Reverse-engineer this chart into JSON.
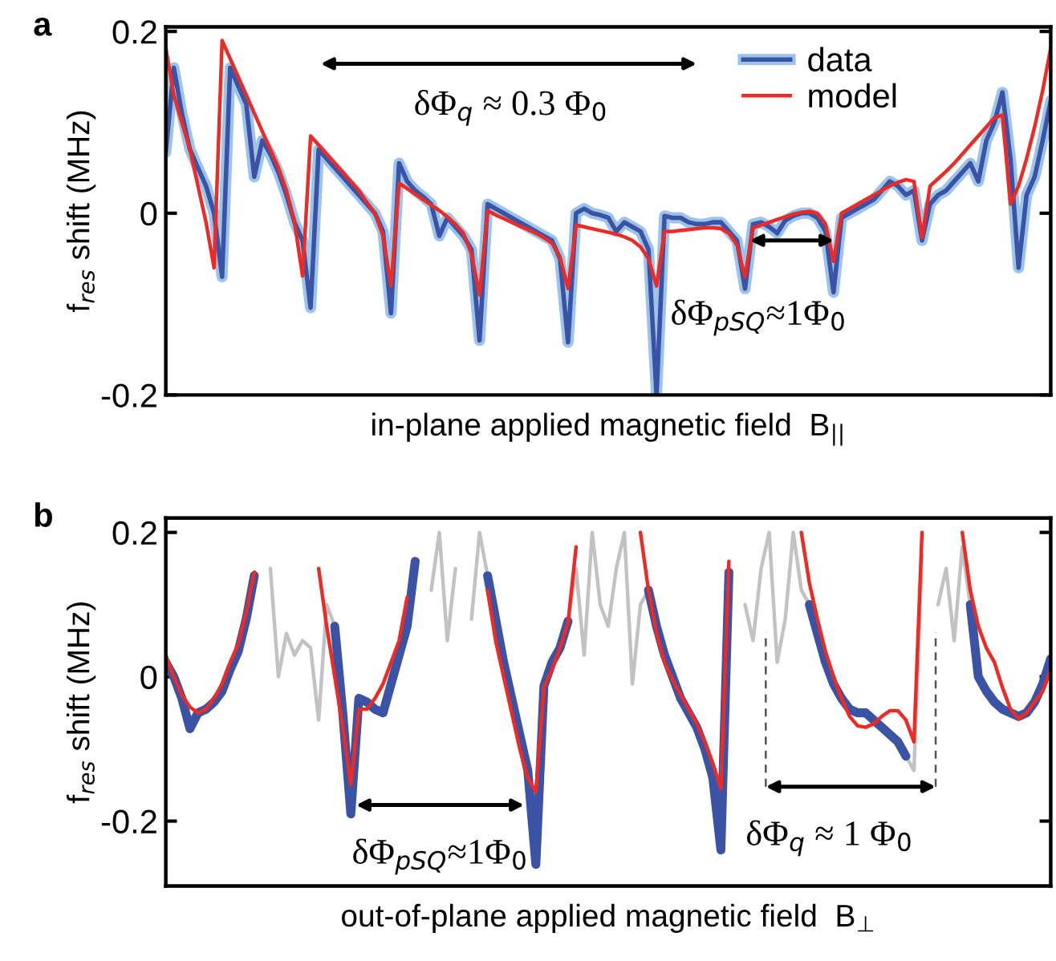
{
  "chart_data": [
    {
      "type": "line",
      "ylabel": "f$_{res}$ shift (MHz)",
      "xlabel": "in-plane applied magnetic field  B$_{||}$",
      "annotations": [
        "a",
        "δΦ$_{q}$ ≈ 0.3 Φ$_{0}$",
        "δΦ$_{pSQ}$≈1Φ$_{0}$"
      ],
      "categories": [
        null,
        null,
        null,
        null,
        null,
        null,
        null,
        null,
        null,
        null,
        null,
        null,
        null,
        null,
        null,
        null,
        null,
        null,
        null,
        null,
        null,
        null,
        null,
        null,
        null,
        null,
        null,
        null,
        null,
        null,
        null,
        null,
        null,
        null,
        null,
        null,
        null,
        null,
        null,
        null,
        null,
        null,
        null,
        null,
        null,
        null,
        null,
        null,
        null,
        null,
        null,
        null,
        null,
        null,
        null,
        null,
        null,
        null,
        null,
        null,
        null,
        null,
        null,
        null,
        null,
        null,
        null,
        null,
        null,
        null,
        null,
        null,
        null,
        null,
        null,
        null,
        null,
        null,
        null,
        null,
        null,
        null,
        null,
        null,
        null,
        null,
        null,
        null,
        null,
        null,
        null,
        null,
        null,
        null,
        null,
        null,
        null,
        null,
        null,
        null,
        null,
        null,
        null,
        null,
        null,
        null,
        null,
        null,
        null,
        null,
        null
      ],
      "ylim": [
        -0.2,
        0.205
      ],
      "yticks": [
        -0.2,
        0,
        0.2
      ],
      "tick_labels": "y",
      "legend": "top right",
      "series": [
        {
          "name": "data",
          "color": "#3a53a4",
          "values": [
            0.067,
            0.16,
            0.11,
            0.07,
            0.05,
            0.03,
            0.0,
            -0.07,
            0.16,
            0.14,
            0.12,
            0.04,
            0.08,
            0.065,
            0.045,
            0.02,
            -0.01,
            -0.03,
            -0.104,
            0.07,
            0.06,
            0.05,
            0.04,
            0.03,
            0.02,
            0.01,
            0.0,
            -0.02,
            -0.11,
            0.055,
            0.035,
            0.025,
            0.018,
            0.01,
            -0.025,
            -0.005,
            -0.015,
            -0.025,
            -0.04,
            -0.14,
            0.01,
            0.005,
            0.0,
            -0.005,
            -0.01,
            -0.015,
            -0.02,
            -0.025,
            -0.03,
            -0.05,
            -0.142,
            0.0,
            0.005,
            0.0,
            -0.002,
            -0.005,
            -0.02,
            -0.01,
            -0.015,
            -0.02,
            -0.04,
            -0.2,
            -0.003,
            -0.005,
            -0.005,
            -0.01,
            -0.012,
            -0.012,
            -0.01,
            -0.01,
            -0.02,
            -0.03,
            -0.083,
            -0.012,
            -0.01,
            -0.015,
            -0.022,
            -0.008,
            -0.003,
            0.0,
            0.0,
            -0.005,
            -0.02,
            -0.087,
            -0.005,
            0.0,
            0.005,
            0.01,
            0.015,
            0.025,
            0.035,
            0.03,
            0.02,
            0.025,
            -0.03,
            0.01,
            0.02,
            0.025,
            0.035,
            0.045,
            0.055,
            0.035,
            0.08,
            0.1,
            0.133,
            0.06,
            -0.06,
            0.02,
            0.04,
            0.08,
            0.124
          ]
        },
        {
          "name": "model",
          "color": "#ee2a24",
          "values": [
            0.182,
            0.13,
            0.1,
            0.07,
            0.03,
            -0.01,
            -0.06,
            0.19,
            0.17,
            0.15,
            0.13,
            0.11,
            0.09,
            0.07,
            0.05,
            0.025,
            -0.01,
            -0.069,
            0.085,
            0.075,
            0.065,
            0.055,
            0.045,
            0.035,
            0.025,
            0.012,
            0.0,
            -0.025,
            -0.08,
            0.033,
            0.027,
            0.021,
            0.015,
            0.009,
            0.003,
            -0.004,
            -0.012,
            -0.022,
            -0.045,
            -0.09,
            0.003,
            -0.002,
            -0.006,
            -0.01,
            -0.014,
            -0.018,
            -0.022,
            -0.027,
            -0.033,
            -0.048,
            -0.083,
            -0.013,
            -0.015,
            -0.017,
            -0.019,
            -0.021,
            -0.023,
            -0.026,
            -0.03,
            -0.037,
            -0.05,
            -0.08,
            -0.02,
            -0.02,
            -0.019,
            -0.018,
            -0.017,
            -0.016,
            -0.016,
            -0.017,
            -0.022,
            -0.035,
            -0.07,
            -0.016,
            -0.013,
            -0.01,
            -0.007,
            -0.004,
            -0.001,
            0.001,
            0.002,
            0.0,
            -0.012,
            -0.053,
            0.0,
            0.005,
            0.01,
            0.015,
            0.02,
            0.025,
            0.03,
            0.034,
            0.037,
            0.035,
            -0.027,
            0.03,
            0.038,
            0.046,
            0.055,
            0.065,
            0.075,
            0.085,
            0.095,
            0.105,
            0.108,
            0.01,
            0.03,
            0.06,
            0.095,
            0.135,
            0.182
          ]
        }
      ]
    },
    {
      "type": "line",
      "ylabel": "f$_{res}$ shift (MHz)",
      "xlabel": "out-of-plane applied magnetic field  B$_{⊥}$",
      "annotations": [
        "b",
        "δΦ$_{pSQ}$≈1Φ$_{0}$",
        "δΦ$_{q}$ ≈ 1 Φ$_{0}$"
      ],
      "categories": [
        null,
        null,
        null,
        null,
        null,
        null,
        null,
        null,
        null,
        null,
        null,
        null,
        null,
        null,
        null,
        null,
        null,
        null,
        null,
        null,
        null,
        null,
        null,
        null,
        null,
        null,
        null,
        null,
        null,
        null,
        null,
        null,
        null,
        null,
        null,
        null,
        null,
        null,
        null,
        null,
        null,
        null,
        null,
        null,
        null,
        null,
        null,
        null,
        null,
        null,
        null,
        null,
        null,
        null,
        null,
        null,
        null,
        null,
        null,
        null,
        null,
        null,
        null,
        null,
        null,
        null,
        null,
        null,
        null,
        null,
        null,
        null,
        null,
        null,
        null,
        null,
        null,
        null,
        null,
        null,
        null,
        null,
        null,
        null,
        null,
        null,
        null,
        null,
        null,
        null,
        null,
        null,
        null,
        null,
        null,
        null,
        null,
        null,
        null,
        null,
        null,
        null,
        null,
        null,
        null,
        null,
        null,
        null,
        null,
        null,
        null
      ],
      "ylim": [
        -0.29,
        0.22
      ],
      "yticks": [
        -0.2,
        0,
        0.2
      ],
      "tick_labels": "y",
      "series": [
        {
          "color": "#c0c2c4",
          "values": [
            null,
            null,
            null,
            null,
            null,
            null,
            null,
            null,
            null,
            null,
            0.08,
            0.14,
            null,
            0.15,
            0.0,
            0.06,
            0.03,
            0.05,
            0.04,
            -0.06,
            0.1,
            0.07,
            null,
            null,
            null,
            null,
            null,
            null,
            null,
            null,
            0.07,
            0.16,
            null,
            0.12,
            0.2,
            0.05,
            0.15,
            null,
            0.08,
            0.2,
            0.14,
            null,
            null,
            null,
            null,
            null,
            null,
            null,
            null,
            null,
            0.077,
            0.15,
            0.03,
            0.2,
            0.1,
            0.07,
            0.15,
            0.2,
            -0.01,
            0.1,
            0.12,
            null,
            null,
            null,
            null,
            null,
            null,
            null,
            null,
            -0.24,
            0.145,
            null,
            0.1,
            0.05,
            0.15,
            0.2,
            0.02,
            0.08,
            0.2,
            0.12,
            0.1,
            null,
            null,
            null,
            null,
            null,
            null,
            null,
            null,
            null,
            null,
            null,
            -0.11,
            -0.13,
            0.17,
            null,
            0.1,
            0.15,
            0.05,
            0.18,
            0.1,
            null,
            null,
            null,
            null,
            null,
            null,
            null,
            null,
            null,
            null
          ]
        },
        {
          "color": "#3a53a4",
          "values": [
            0.02,
            0.0,
            -0.03,
            -0.072,
            -0.05,
            -0.045,
            -0.035,
            -0.02,
            0.01,
            0.035,
            0.08,
            0.14,
            null,
            null,
            null,
            null,
            null,
            null,
            null,
            null,
            null,
            0.07,
            -0.05,
            -0.19,
            -0.03,
            -0.035,
            -0.045,
            -0.05,
            -0.01,
            0.03,
            0.07,
            0.16,
            null,
            null,
            null,
            null,
            null,
            null,
            null,
            null,
            0.14,
            0.08,
            0.02,
            -0.03,
            -0.08,
            -0.13,
            -0.26,
            -0.013,
            0.02,
            0.04,
            0.077,
            null,
            null,
            null,
            null,
            null,
            null,
            null,
            null,
            null,
            0.12,
            0.07,
            0.03,
            0.0,
            -0.03,
            -0.05,
            -0.07,
            -0.1,
            -0.14,
            -0.24,
            0.145,
            null,
            null,
            null,
            null,
            null,
            null,
            null,
            null,
            null,
            0.1,
            0.06,
            0.02,
            -0.01,
            -0.03,
            -0.045,
            -0.05,
            -0.05,
            -0.06,
            -0.07,
            -0.08,
            -0.09,
            -0.11,
            null,
            null,
            null,
            null,
            null,
            null,
            null,
            0.1,
            0.0,
            -0.02,
            -0.035,
            -0.045,
            -0.05,
            -0.055,
            -0.05,
            -0.035,
            -0.01,
            0.025
          ]
        },
        {
          "color": "#ee2a24",
          "values": [
            0.03,
            0.0,
            -0.025,
            -0.042,
            -0.05,
            -0.045,
            -0.03,
            -0.01,
            0.02,
            0.045,
            0.09,
            0.145,
            null,
            null,
            null,
            null,
            null,
            null,
            null,
            0.15,
            0.07,
            0.0,
            -0.07,
            -0.15,
            -0.045,
            -0.045,
            -0.03,
            -0.01,
            0.02,
            0.05,
            0.11,
            null,
            null,
            null,
            null,
            null,
            null,
            null,
            null,
            null,
            0.12,
            0.05,
            0.0,
            -0.05,
            -0.1,
            -0.14,
            -0.16,
            -0.015,
            0.01,
            0.04,
            0.075,
            0.18,
            null,
            null,
            null,
            null,
            null,
            null,
            null,
            0.2,
            0.12,
            0.06,
            0.02,
            -0.005,
            -0.025,
            -0.045,
            -0.065,
            -0.09,
            -0.12,
            -0.155,
            0.16,
            null,
            null,
            null,
            null,
            null,
            null,
            null,
            null,
            0.2,
            0.13,
            0.08,
            0.035,
            0.0,
            -0.03,
            -0.055,
            -0.068,
            -0.07,
            -0.065,
            -0.055,
            -0.047,
            -0.047,
            -0.06,
            -0.09,
            0.2,
            null,
            null,
            null,
            null,
            0.2,
            0.12,
            0.07,
            0.04,
            0.02,
            -0.015,
            -0.045,
            -0.058,
            -0.05,
            -0.035,
            -0.02,
            0.01
          ]
        }
      ]
    }
  ]
}
